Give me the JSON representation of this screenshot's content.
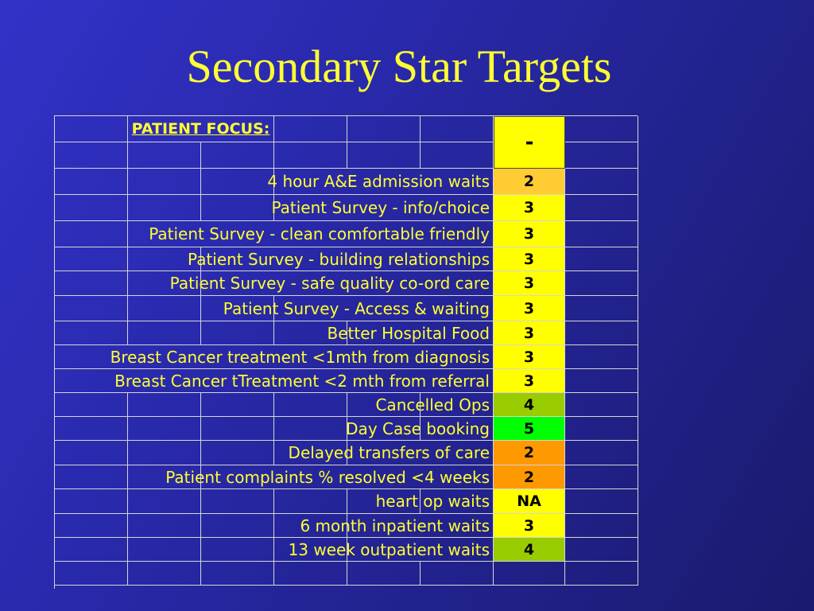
{
  "title": "Secondary Star Targets",
  "section_heading": "PATIENT FOCUS:",
  "overall_rating": "-",
  "colors": {
    "title_yellow": "#ffff33",
    "score_yellow": "#ffff00",
    "score_orange": "#ff9900",
    "score_light_orange": "#ffcc33",
    "score_olive_green": "#99cc00",
    "score_green": "#00ff00"
  },
  "rows": [
    {
      "label": "4 hour A&E admission waits",
      "score": "2",
      "color": "#ffcc33"
    },
    {
      "label": "Patient Survey - info/choice",
      "score": "3",
      "color": "#ffff00"
    },
    {
      "label": "Patient Survey - clean comfortable friendly",
      "score": "3",
      "color": "#ffff00"
    },
    {
      "label": "Patient Survey - building relationships",
      "score": "3",
      "color": "#ffff00"
    },
    {
      "label": "Patient Survey - safe quality co-ord care",
      "score": "3",
      "color": "#ffff00"
    },
    {
      "label": "Patient Survey - Access & waiting",
      "score": "3",
      "color": "#ffff00"
    },
    {
      "label": "Better Hospital Food",
      "score": "3",
      "color": "#ffff00"
    },
    {
      "label": "Breast Cancer treatment <1mth from diagnosis",
      "score": "3",
      "color": "#ffff00"
    },
    {
      "label": "Breast Cancer tTreatment <2 mth from referral",
      "score": "3",
      "color": "#ffff00"
    },
    {
      "label": "Cancelled Ops",
      "score": "4",
      "color": "#99cc00"
    },
    {
      "label": "Day Case booking",
      "score": "5",
      "color": "#00ff00"
    },
    {
      "label": "Delayed transfers of care",
      "score": "2",
      "color": "#ff9900"
    },
    {
      "label": "Patient complaints % resolved <4 weeks",
      "score": "2",
      "color": "#ff9900"
    },
    {
      "label": "heart op waits",
      "score": "NA",
      "color": "#ffff00"
    },
    {
      "label": "6 month inpatient waits",
      "score": "3",
      "color": "#ffff00"
    },
    {
      "label": "13 week outpatient waits",
      "score": "4",
      "color": "#99cc00"
    }
  ]
}
